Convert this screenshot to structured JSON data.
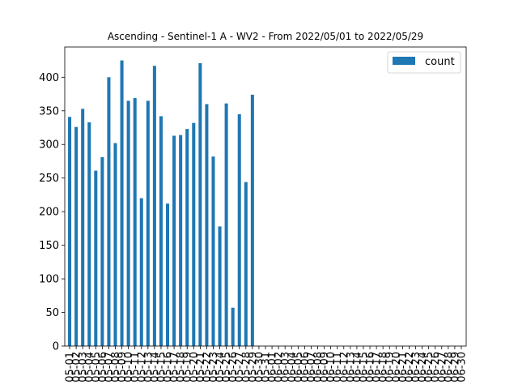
{
  "chart_data": {
    "type": "bar",
    "title": "Ascending - Sentinel-1 A - WV2 - From 2022/05/01 to 2022/05/29",
    "xlabel": "",
    "ylabel": "",
    "ylim": [
      0,
      445
    ],
    "yticks": [
      0,
      50,
      100,
      150,
      200,
      250,
      300,
      350,
      400
    ],
    "grid": false,
    "legend_position": "top-right",
    "bar_color": "#1f77b4",
    "categories": [
      "05-01",
      "05-02",
      "05-03",
      "05-04",
      "05-05",
      "05-06",
      "05-07",
      "05-08",
      "05-09",
      "05-10",
      "05-11",
      "05-12",
      "05-13",
      "05-14",
      "05-15",
      "05-16",
      "05-17",
      "05-18",
      "05-19",
      "05-20",
      "05-21",
      "05-22",
      "05-23",
      "05-24",
      "05-25",
      "05-26",
      "05-27",
      "05-28",
      "05-29",
      "05-30",
      "05-31",
      "06-01",
      "06-02",
      "06-03",
      "06-04",
      "06-05",
      "06-06",
      "06-07",
      "06-08",
      "06-09",
      "06-10",
      "06-11",
      "06-12",
      "06-13",
      "06-14",
      "06-15",
      "06-16",
      "06-17",
      "06-18",
      "06-19",
      "06-20",
      "06-21",
      "06-22",
      "06-23",
      "06-24",
      "06-25",
      "06-26",
      "06-27",
      "06-28",
      "06-29",
      "06-30"
    ],
    "series": [
      {
        "name": "count",
        "values": [
          341,
          326,
          353,
          333,
          261,
          281,
          400,
          302,
          425,
          365,
          369,
          220,
          365,
          417,
          342,
          212,
          313,
          314,
          323,
          332,
          421,
          360,
          282,
          178,
          361,
          57,
          345,
          244,
          374,
          0,
          0,
          0,
          0,
          0,
          0,
          0,
          0,
          0,
          0,
          0,
          0,
          0,
          0,
          0,
          0,
          0,
          0,
          0,
          0,
          0,
          0,
          0,
          0,
          0,
          0,
          0,
          0,
          0,
          0,
          0,
          0
        ]
      }
    ]
  }
}
